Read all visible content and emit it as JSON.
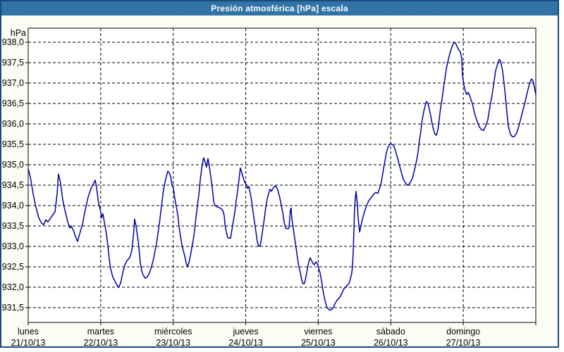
{
  "window": {
    "title": "Presión atmosférica [hPa] escala"
  },
  "colors": {
    "frame_border": "#1b4b7e",
    "titlebar_bg": "#2c71a7",
    "titlebar_text": "#ffffff",
    "panel_bg": "#fcfcf4",
    "plot_bg": "#ffffff",
    "grid": "#000000",
    "axis": "#000000",
    "series_line": "#0000a5",
    "label_text": "#000000"
  },
  "chart_data": {
    "type": "line",
    "title": "Presión atmosférica [hPa] escala",
    "unit_label": "hPa",
    "legend": "none",
    "grid": "dashed",
    "y_axis": {
      "min": 931.5,
      "max": 938.0,
      "step": 0.5,
      "tick_labels": [
        "938,0",
        "937,5",
        "937,0",
        "936,5",
        "936,0",
        "935,5",
        "935,0",
        "934,5",
        "934,0",
        "933,5",
        "933,0",
        "932,5",
        "932,0",
        "931,5"
      ]
    },
    "x_axis": {
      "hours_span": 168,
      "gridline_hours": [
        24,
        48,
        72,
        96,
        120,
        144
      ],
      "tick_hours": [
        0,
        24,
        48,
        72,
        96,
        120,
        144,
        168
      ],
      "days": [
        {
          "name": "lunes",
          "date": "21/10/13",
          "start_hour": 0
        },
        {
          "name": "martes",
          "date": "22/10/13",
          "start_hour": 24
        },
        {
          "name": "miércoles",
          "date": "23/10/13",
          "start_hour": 48
        },
        {
          "name": "jueves",
          "date": "24/10/13",
          "start_hour": 72
        },
        {
          "name": "viernes",
          "date": "25/10/13",
          "start_hour": 96
        },
        {
          "name": "sábado",
          "date": "26/10/13",
          "start_hour": 120
        },
        {
          "name": "domingo",
          "date": "27/10/13",
          "start_hour": 144
        }
      ]
    },
    "series": [
      {
        "name": "presión atmosférica",
        "color": "#0000a5",
        "hours": [
          0,
          0.7,
          1.6,
          2.6,
          3.5,
          4.4,
          5.1,
          5.8,
          6.5,
          7.2,
          7.9,
          8.9,
          9.6,
          10,
          10.7,
          11.4,
          12.1,
          13.1,
          13.8,
          14.2,
          14.9,
          15.6,
          16.3,
          17,
          18,
          18.9,
          19.8,
          20.8,
          21.7,
          22.2,
          22.6,
          23.3,
          24,
          24.3,
          24.7,
          25.2,
          25.9,
          26.4,
          26.8,
          27.3,
          28,
          28.7,
          29.4,
          29.9,
          30.6,
          31.3,
          32,
          32.7,
          33.6,
          34.3,
          35,
          35.2,
          35.7,
          36.2,
          36.6,
          37.1,
          37.6,
          38,
          38.7,
          39.4,
          40.1,
          40.8,
          41.5,
          42,
          42.5,
          42.9,
          43.4,
          43.9,
          44.3,
          44.8,
          45.5,
          46.2,
          46.7,
          47.1,
          47.6,
          48.1,
          48.5,
          49,
          49.5,
          49.9,
          50.4,
          50.9,
          51.3,
          51.8,
          52.3,
          52.7,
          53.2,
          53.7,
          54.1,
          54.6,
          55.1,
          55.5,
          56,
          56.5,
          56.9,
          57.4,
          57.9,
          58.1,
          58.6,
          59,
          59.3,
          59.5,
          60,
          60.4,
          60.9,
          61.4,
          61.8,
          62.5,
          63.2,
          63.9,
          64.4,
          64.9,
          65.1,
          65.6,
          66,
          66.5,
          67,
          67.4,
          67.9,
          68.4,
          68.8,
          69.3,
          69.8,
          70.2,
          70.7,
          71.2,
          71.6,
          72.1,
          72.6,
          73,
          73.5,
          74,
          74.4,
          74.9,
          75.4,
          75.8,
          76.3,
          76.8,
          77.2,
          77.7,
          78.2,
          78.6,
          79.1,
          79.6,
          80,
          80.5,
          81,
          81.4,
          81.9,
          82.4,
          82.8,
          83.3,
          83.8,
          84.2,
          84.7,
          85.2,
          85.9,
          86.3,
          86.8,
          87,
          87.3,
          87.7,
          88.2,
          88.7,
          89.1,
          89.6,
          90.1,
          90.5,
          91,
          91.5,
          91.9,
          92.4,
          92.9,
          93.3,
          93.8,
          94.3,
          94.7,
          95.2,
          95.7,
          96.1,
          96.6,
          97.1,
          97.5,
          98,
          98.5,
          98.9,
          99.4,
          99.9,
          100.3,
          100.8,
          101.3,
          101.7,
          102.2,
          102.7,
          103.1,
          103.6,
          104.1,
          104.5,
          105,
          105.7,
          106.2,
          106.6,
          107.1,
          107.3,
          107.6,
          107.8,
          108,
          108.3,
          108.5,
          109,
          109.2,
          109.7,
          110.4,
          111.3,
          112,
          112.7,
          113.6,
          114.3,
          115,
          115.7,
          116.2,
          116.7,
          117.1,
          117.6,
          118.1,
          118.5,
          119,
          119.5,
          119.9,
          120.4,
          120.9,
          121.3,
          121.8,
          122.3,
          122.7,
          123.2,
          123.7,
          124.1,
          124.8,
          125.5,
          126,
          126.7,
          127.2,
          127.6,
          128.1,
          128.6,
          129,
          129.5,
          130,
          130.4,
          130.9,
          131.4,
          131.8,
          132.3,
          132.8,
          133.2,
          133.7,
          134.2,
          134.6,
          135.1,
          135.6,
          136,
          136.5,
          137,
          137.4,
          137.9,
          138.4,
          138.8,
          139.3,
          139.8,
          140.2,
          140.7,
          141.2,
          141.6,
          142.1,
          142.6,
          143,
          143.5,
          143.7,
          144.2,
          144.7,
          145.1,
          145.6,
          146.1,
          146.5,
          147,
          147.7,
          148.6,
          149.3,
          150,
          150.7,
          151.4,
          152.1,
          152.8,
          153.5,
          154,
          154.7,
          155.4,
          155.9,
          156.3,
          157,
          157.7,
          158.4,
          158.9,
          159.6,
          160.3,
          161,
          161.7,
          162.4,
          163.1,
          163.8,
          164.5,
          165.2,
          165.9,
          166.6,
          167.1,
          167.5,
          168
        ],
        "values": [
          934.9,
          934.7,
          934.3,
          933.95,
          933.7,
          933.57,
          933.53,
          933.65,
          933.6,
          933.67,
          933.75,
          933.85,
          934.3,
          934.77,
          934.55,
          934.15,
          933.9,
          933.6,
          933.45,
          933.5,
          933.4,
          933.25,
          933.12,
          933.3,
          933.55,
          933.9,
          934.2,
          934.42,
          934.55,
          934.62,
          934.45,
          934.05,
          933.85,
          933.7,
          933.8,
          933.6,
          933.3,
          933,
          932.7,
          932.45,
          932.25,
          932.15,
          932.05,
          932,
          932.1,
          932.35,
          932.55,
          932.65,
          932.72,
          932.9,
          933.4,
          933.67,
          933.5,
          933.25,
          933,
          932.6,
          932.4,
          932.3,
          932.22,
          932.25,
          932.35,
          932.5,
          932.7,
          932.9,
          933.08,
          933.3,
          933.55,
          933.85,
          934.1,
          934.4,
          934.65,
          934.84,
          934.8,
          934.72,
          934.5,
          934.42,
          934.18,
          933.98,
          933.78,
          933.5,
          933.25,
          933.03,
          932.9,
          932.77,
          932.6,
          932.5,
          932.6,
          932.78,
          932.95,
          933.15,
          933.4,
          933.7,
          934,
          934.27,
          934.6,
          934.9,
          935.13,
          935.17,
          935.05,
          934.94,
          935.08,
          935.15,
          934.94,
          934.71,
          934.45,
          934.1,
          934,
          933.97,
          933.95,
          933.92,
          933.88,
          933.75,
          933.55,
          933.35,
          933.22,
          933.2,
          933.2,
          933.4,
          933.62,
          933.85,
          934.1,
          934.35,
          934.65,
          934.92,
          934.8,
          934.68,
          934.58,
          934.52,
          934.42,
          934.47,
          934.3,
          934.1,
          933.85,
          933.6,
          933.35,
          933.12,
          933,
          933.02,
          933.2,
          933.45,
          933.7,
          933.95,
          934.16,
          934.3,
          934.4,
          934.35,
          934.42,
          934.46,
          934.48,
          934.42,
          934.32,
          934.18,
          934,
          933.85,
          933.6,
          933.45,
          933.43,
          933.45,
          933.9,
          933.94,
          933.66,
          933.45,
          933.2,
          932.95,
          932.72,
          932.5,
          932.35,
          932.18,
          932.08,
          932.1,
          932.25,
          932.45,
          932.63,
          932.72,
          932.65,
          932.58,
          932.55,
          932.62,
          932.58,
          932.48,
          932.35,
          932.15,
          931.95,
          931.75,
          931.6,
          931.5,
          931.46,
          931.44,
          931.45,
          931.48,
          931.55,
          931.62,
          931.68,
          931.72,
          931.75,
          931.82,
          931.9,
          931.96,
          932,
          932.05,
          932.1,
          932.2,
          932.35,
          932.5,
          932.9,
          933.4,
          933.9,
          934.2,
          934.35,
          934,
          933.7,
          933.35,
          933.6,
          933.85,
          934,
          934.12,
          934.2,
          934.28,
          934.32,
          934.3,
          934.4,
          934.5,
          934.68,
          934.9,
          935.1,
          935.28,
          935.42,
          935.48,
          935.52,
          935.5,
          935.47,
          935.4,
          935.28,
          935.15,
          935.02,
          934.9,
          934.76,
          934.65,
          934.56,
          934.5,
          934.52,
          934.6,
          934.68,
          934.8,
          934.95,
          935.12,
          935.3,
          935.6,
          935.85,
          936.1,
          936.3,
          936.45,
          936.55,
          936.5,
          936.35,
          936.2,
          936,
          935.85,
          935.75,
          935.72,
          935.85,
          936.1,
          936.4,
          936.62,
          936.85,
          937.1,
          937.35,
          937.5,
          937.65,
          937.78,
          937.88,
          937.97,
          938,
          937.95,
          937.87,
          937.8,
          937.77,
          937.6,
          937.2,
          936.95,
          936.8,
          936.72,
          936.77,
          936.7,
          936.6,
          936.5,
          936.27,
          936.06,
          935.93,
          935.86,
          935.84,
          935.95,
          936.1,
          936.42,
          936.7,
          936.94,
          937.3,
          937.48,
          937.58,
          937.55,
          937.3,
          936.85,
          936.3,
          935.95,
          935.75,
          935.68,
          935.7,
          935.78,
          935.95,
          936.15,
          936.35,
          936.55,
          936.78,
          936.98,
          937.1,
          937.05,
          936.9,
          936.72
        ]
      }
    ]
  }
}
